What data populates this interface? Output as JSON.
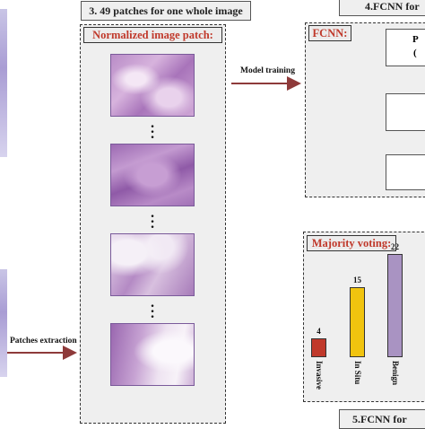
{
  "steps": {
    "step3_title": "3. 49 patches for one whole image",
    "step4_title": "4.FCNN for",
    "step5_title": "5.FCNN for"
  },
  "patch_panel": {
    "label": "Normalized image patch:"
  },
  "fcnn_panel": {
    "label": "FCNN:",
    "top_box_text": "P",
    "top_box_text2": "("
  },
  "voting_panel": {
    "label": "Majority voting:"
  },
  "arrows": {
    "extraction_label": "Patches extraction",
    "training_label": "Model training"
  },
  "colors": {
    "accent_red": "#c0392b",
    "arrow": "#8e3a3a",
    "bar_invasive": "#c0392b",
    "bar_insitu": "#f1c40f",
    "bar_benign": "#a993c2"
  },
  "chart_data": {
    "type": "bar",
    "title": "Majority voting:",
    "categories": [
      "Invasive",
      "In Situ",
      "Benign"
    ],
    "values": [
      4,
      15,
      22
    ],
    "ylim": [
      0,
      22
    ],
    "xlabel": "",
    "ylabel": "",
    "grid": false
  }
}
